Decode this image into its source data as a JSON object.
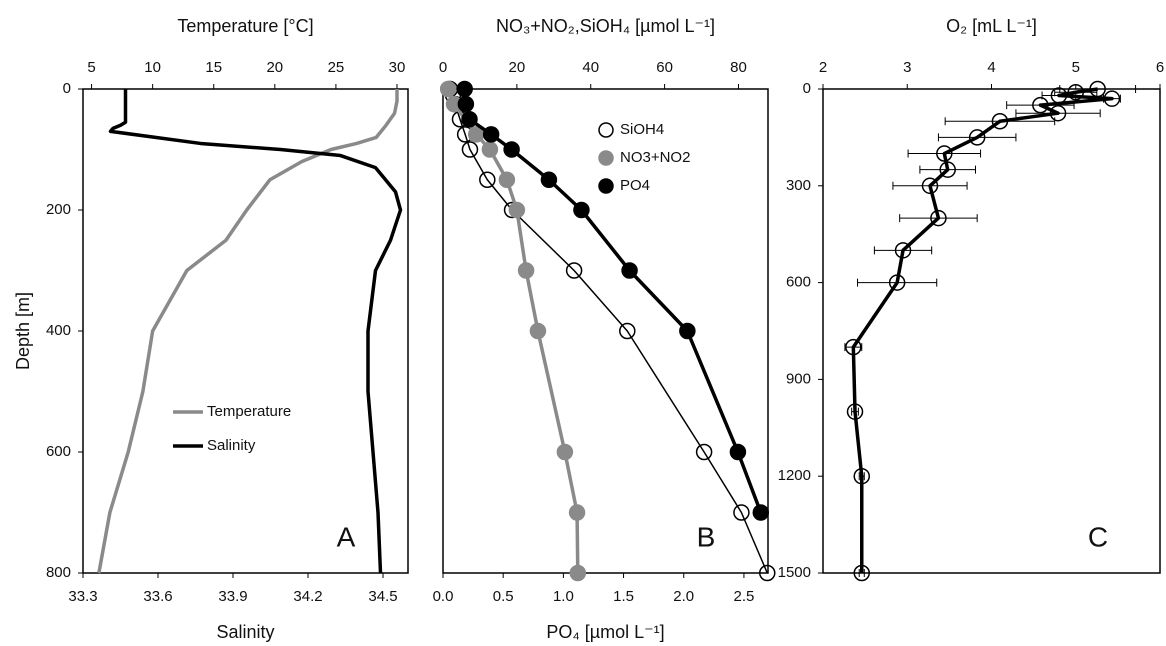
{
  "chart_data": [
    {
      "type": "line",
      "x2_title": "Temperature [°C]",
      "x_title": "Salinity",
      "y_title": "Depth [m]",
      "x2lim": [
        4.3,
        30.9
      ],
      "x2ticks": [
        5,
        10,
        15,
        20,
        25,
        30
      ],
      "xlim": [
        33.3,
        34.6
      ],
      "xticks": [
        33.3,
        33.6,
        33.9,
        34.2,
        34.5
      ],
      "ylim": [
        0,
        800
      ],
      "yticks": [
        0,
        200,
        400,
        600,
        800
      ],
      "y_reversed": true,
      "legend": "center-left",
      "annotation": "A",
      "series": [
        {
          "name": "Temperature",
          "color": "#8a8a8a",
          "axis": "x2",
          "marker": "none",
          "y": [
            0,
            20,
            40,
            60,
            80,
            90,
            100,
            120,
            150,
            200,
            250,
            300,
            400,
            500,
            600,
            700,
            800
          ],
          "values": [
            30,
            30,
            29.8,
            29.1,
            28.3,
            26.7,
            24.6,
            22.2,
            19.6,
            17.7,
            16,
            12.8,
            10,
            9.2,
            8,
            6.5,
            5.6
          ]
        },
        {
          "name": "Salinity",
          "color": "#000000",
          "marker": "none",
          "y": [
            0,
            55,
            60,
            65,
            70,
            90,
            100,
            110,
            130,
            170,
            200,
            250,
            300,
            400,
            500,
            600,
            700,
            800
          ],
          "values": [
            33.47,
            33.47,
            33.45,
            33.42,
            33.41,
            33.77,
            34.09,
            34.33,
            34.47,
            34.55,
            34.57,
            34.53,
            34.47,
            34.44,
            34.44,
            34.46,
            34.48,
            34.49
          ]
        }
      ]
    },
    {
      "type": "line",
      "x2_title": "NO₃+NO₂,SiOH₄ [µmol L⁻¹]",
      "x_title": "PO₄ [µmol L⁻¹]",
      "x2lim": [
        0,
        88
      ],
      "x2ticks": [
        0,
        20,
        40,
        60,
        80
      ],
      "xlim": [
        0,
        2.7
      ],
      "xticks": [
        {
          "value": 0,
          "label": "0.0"
        },
        0.5,
        {
          "value": 1,
          "label": "1.0"
        },
        1.5,
        {
          "value": 2,
          "label": "2.0"
        },
        2.5
      ],
      "ylim": [
        0,
        800
      ],
      "y_reversed": true,
      "legend": "upper-right",
      "annotation": "B",
      "series": [
        {
          "name": "SiOH4",
          "color": "#000000",
          "axis": "x2",
          "marker": "open",
          "y": [
            0,
            10,
            25,
            50,
            75,
            100,
            150,
            200,
            300,
            400,
            600,
            700,
            800
          ],
          "values": [
            1.9,
            2.7,
            3.3,
            4.6,
            6,
            7.3,
            12,
            18.7,
            35.5,
            49.9,
            70.7,
            80.8,
            87.8
          ]
        },
        {
          "name": "NO3+NO2",
          "color": "#8a8a8a",
          "axis": "x2",
          "marker": "filled",
          "y": [
            0,
            25,
            75,
            100,
            150,
            200,
            300,
            400,
            600,
            700,
            800
          ],
          "values": [
            1.4,
            3,
            9,
            12.7,
            17.3,
            20,
            22.5,
            25.7,
            33,
            36.3,
            36.5
          ]
        },
        {
          "name": "PO4",
          "color": "#000000",
          "marker": "filled",
          "y": [
            0,
            25,
            50,
            75,
            100,
            150,
            200,
            300,
            400,
            600,
            700
          ],
          "values": [
            0.18,
            0.19,
            0.22,
            0.4,
            0.57,
            0.88,
            1.15,
            1.55,
            2.03,
            2.45,
            2.64
          ]
        }
      ]
    },
    {
      "type": "line",
      "x2_title": "O₂ [mL L⁻¹]",
      "x2lim": [
        2,
        6
      ],
      "x2ticks": [
        2,
        3,
        4,
        5,
        6
      ],
      "ylim": [
        0,
        1500
      ],
      "yticks": [
        0,
        300,
        600,
        900,
        1200,
        1500
      ],
      "y_reversed": true,
      "annotation": "C",
      "series": [
        {
          "color": "#000000",
          "axis": "x2",
          "marker": "open",
          "y": [
            0,
            10,
            20,
            30,
            50,
            75,
            100,
            150,
            200,
            250,
            300,
            400,
            500,
            600,
            800,
            1000,
            1200,
            1500
          ],
          "values": [
            5.26,
            5.0,
            4.8,
            5.43,
            4.58,
            4.79,
            4.1,
            3.83,
            3.44,
            3.48,
            3.27,
            3.37,
            2.95,
            2.88,
            2.36,
            2.38,
            2.46,
            2.46
          ],
          "errors": [
            0.45,
            0.25,
            0.2,
            0.1,
            0.4,
            0.5,
            0.65,
            0.46,
            0.43,
            0.33,
            0.44,
            0.46,
            0.34,
            0.47,
            0.1,
            0.04,
            0.03,
            0.03
          ]
        }
      ]
    }
  ]
}
